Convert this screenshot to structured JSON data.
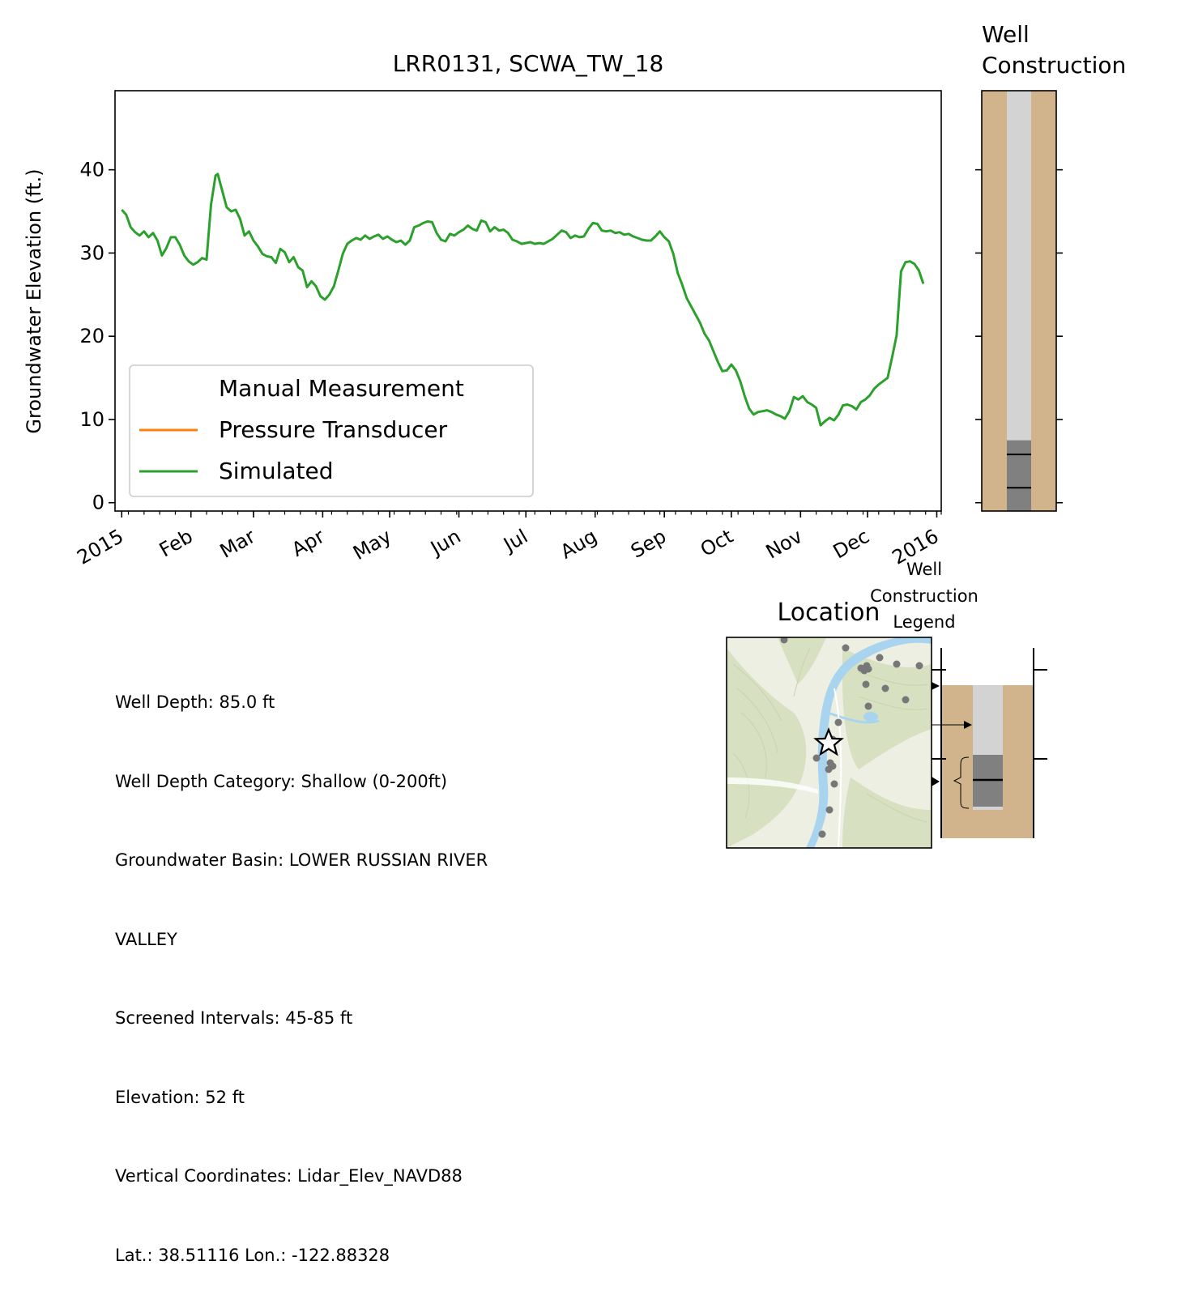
{
  "chart_data": [
    {
      "type": "line",
      "title": "LRR0131, SCWA_TW_18",
      "xlabel": "",
      "ylabel": "Groundwater Elevation (ft.)",
      "ylim": [
        -1,
        49.5
      ],
      "yticks": [
        0,
        10,
        20,
        30,
        40
      ],
      "xlim": [
        "2014-12-29",
        "2016-01-03"
      ],
      "xticks": [
        {
          "date": "2015-01-01",
          "label": "2015"
        },
        {
          "date": "2015-02-01",
          "label": "Feb"
        },
        {
          "date": "2015-03-01",
          "label": "Mar"
        },
        {
          "date": "2015-04-01",
          "label": "Apr"
        },
        {
          "date": "2015-05-01",
          "label": "May"
        },
        {
          "date": "2015-06-01",
          "label": "Jun"
        },
        {
          "date": "2015-07-01",
          "label": "Jul"
        },
        {
          "date": "2015-08-01",
          "label": "Aug"
        },
        {
          "date": "2015-09-01",
          "label": "Sep"
        },
        {
          "date": "2015-10-01",
          "label": "Oct"
        },
        {
          "date": "2015-11-01",
          "label": "Nov"
        },
        {
          "date": "2015-12-01",
          "label": "Dec"
        },
        {
          "date": "2016-01-01",
          "label": "2016"
        }
      ],
      "legend": {
        "placement": "lower-left",
        "entries": [
          {
            "name": "Manual Measurement",
            "color": "",
            "marker": "none"
          },
          {
            "name": "Pressure Transducer",
            "color": "#ff7f0e"
          },
          {
            "name": "Simulated",
            "color": "#2ca02c"
          }
        ]
      },
      "series": [
        {
          "name": "Manual Measurement",
          "points": []
        },
        {
          "name": "Pressure Transducer",
          "points": []
        },
        {
          "name": "Simulated",
          "color": "#2ca02c",
          "points": [
            [
              "2015-01-01",
              35.2
            ],
            [
              "2015-01-03",
              34.6
            ],
            [
              "2015-01-05",
              33.1
            ],
            [
              "2015-01-07",
              32.5
            ],
            [
              "2015-01-09",
              32.1
            ],
            [
              "2015-01-11",
              32.6
            ],
            [
              "2015-01-13",
              31.9
            ],
            [
              "2015-01-15",
              32.4
            ],
            [
              "2015-01-17",
              31.5
            ],
            [
              "2015-01-19",
              29.7
            ],
            [
              "2015-01-21",
              30.6
            ],
            [
              "2015-01-23",
              31.9
            ],
            [
              "2015-01-25",
              31.9
            ],
            [
              "2015-01-27",
              31.0
            ],
            [
              "2015-01-29",
              29.7
            ],
            [
              "2015-01-31",
              29.0
            ],
            [
              "2015-02-02",
              28.6
            ],
            [
              "2015-02-04",
              28.9
            ],
            [
              "2015-02-06",
              29.4
            ],
            [
              "2015-02-08",
              29.2
            ],
            [
              "2015-02-10",
              35.8
            ],
            [
              "2015-02-12",
              39.3
            ],
            [
              "2015-02-13",
              39.5
            ],
            [
              "2015-02-15",
              37.5
            ],
            [
              "2015-02-17",
              35.5
            ],
            [
              "2015-02-19",
              35.0
            ],
            [
              "2015-02-21",
              35.2
            ],
            [
              "2015-02-23",
              34.1
            ],
            [
              "2015-02-25",
              32.1
            ],
            [
              "2015-02-27",
              32.6
            ],
            [
              "2015-03-01",
              31.5
            ],
            [
              "2015-03-03",
              30.8
            ],
            [
              "2015-03-05",
              29.9
            ],
            [
              "2015-03-07",
              29.6
            ],
            [
              "2015-03-09",
              29.5
            ],
            [
              "2015-03-11",
              28.8
            ],
            [
              "2015-03-13",
              30.5
            ],
            [
              "2015-03-15",
              30.1
            ],
            [
              "2015-03-17",
              28.9
            ],
            [
              "2015-03-19",
              29.5
            ],
            [
              "2015-03-21",
              28.3
            ],
            [
              "2015-03-23",
              27.9
            ],
            [
              "2015-03-25",
              25.9
            ],
            [
              "2015-03-27",
              26.6
            ],
            [
              "2015-03-29",
              26.0
            ],
            [
              "2015-03-31",
              24.8
            ],
            [
              "2015-04-02",
              24.4
            ],
            [
              "2015-04-04",
              25.0
            ],
            [
              "2015-04-06",
              26.0
            ],
            [
              "2015-04-08",
              27.9
            ],
            [
              "2015-04-10",
              29.9
            ],
            [
              "2015-04-12",
              31.1
            ],
            [
              "2015-04-14",
              31.5
            ],
            [
              "2015-04-16",
              31.8
            ],
            [
              "2015-04-18",
              31.6
            ],
            [
              "2015-04-20",
              32.1
            ],
            [
              "2015-04-22",
              31.7
            ],
            [
              "2015-04-24",
              32.0
            ],
            [
              "2015-04-26",
              32.2
            ],
            [
              "2015-04-28",
              31.7
            ],
            [
              "2015-04-30",
              32.0
            ],
            [
              "2015-05-02",
              31.6
            ],
            [
              "2015-05-04",
              31.3
            ],
            [
              "2015-05-06",
              31.5
            ],
            [
              "2015-05-08",
              31.0
            ],
            [
              "2015-05-10",
              31.5
            ],
            [
              "2015-05-12",
              33.1
            ],
            [
              "2015-05-14",
              33.3
            ],
            [
              "2015-05-16",
              33.6
            ],
            [
              "2015-05-18",
              33.8
            ],
            [
              "2015-05-20",
              33.7
            ],
            [
              "2015-05-22",
              32.4
            ],
            [
              "2015-05-24",
              31.6
            ],
            [
              "2015-05-26",
              31.4
            ],
            [
              "2015-05-28",
              32.3
            ],
            [
              "2015-05-30",
              32.1
            ],
            [
              "2015-06-01",
              32.5
            ],
            [
              "2015-06-03",
              32.8
            ],
            [
              "2015-06-05",
              33.3
            ],
            [
              "2015-06-07",
              32.9
            ],
            [
              "2015-06-09",
              32.7
            ],
            [
              "2015-06-11",
              33.9
            ],
            [
              "2015-06-13",
              33.7
            ],
            [
              "2015-06-15",
              32.6
            ],
            [
              "2015-06-17",
              33.1
            ],
            [
              "2015-06-19",
              32.7
            ],
            [
              "2015-06-21",
              32.8
            ],
            [
              "2015-06-23",
              32.4
            ],
            [
              "2015-06-25",
              31.6
            ],
            [
              "2015-06-27",
              31.4
            ],
            [
              "2015-06-29",
              31.1
            ],
            [
              "2015-07-01",
              31.2
            ],
            [
              "2015-07-03",
              31.3
            ],
            [
              "2015-07-05",
              31.1
            ],
            [
              "2015-07-07",
              31.2
            ],
            [
              "2015-07-09",
              31.1
            ],
            [
              "2015-07-11",
              31.4
            ],
            [
              "2015-07-13",
              31.7
            ],
            [
              "2015-07-15",
              32.2
            ],
            [
              "2015-07-17",
              32.7
            ],
            [
              "2015-07-19",
              32.5
            ],
            [
              "2015-07-21",
              31.8
            ],
            [
              "2015-07-23",
              32.1
            ],
            [
              "2015-07-25",
              31.9
            ],
            [
              "2015-07-27",
              32.0
            ],
            [
              "2015-07-29",
              32.9
            ],
            [
              "2015-07-31",
              33.6
            ],
            [
              "2015-08-02",
              33.5
            ],
            [
              "2015-08-04",
              32.7
            ],
            [
              "2015-08-06",
              32.6
            ],
            [
              "2015-08-08",
              32.7
            ],
            [
              "2015-08-10",
              32.4
            ],
            [
              "2015-08-12",
              32.5
            ],
            [
              "2015-08-14",
              32.2
            ],
            [
              "2015-08-16",
              32.3
            ],
            [
              "2015-08-18",
              32.0
            ],
            [
              "2015-08-20",
              31.8
            ],
            [
              "2015-08-22",
              31.6
            ],
            [
              "2015-08-24",
              31.5
            ],
            [
              "2015-08-26",
              31.5
            ],
            [
              "2015-08-28",
              32.0
            ],
            [
              "2015-08-30",
              32.6
            ],
            [
              "2015-09-01",
              31.9
            ],
            [
              "2015-09-03",
              31.4
            ],
            [
              "2015-09-05",
              29.9
            ],
            [
              "2015-09-07",
              27.6
            ],
            [
              "2015-09-09",
              26.2
            ],
            [
              "2015-09-11",
              24.6
            ],
            [
              "2015-09-13",
              23.6
            ],
            [
              "2015-09-15",
              22.6
            ],
            [
              "2015-09-17",
              21.6
            ],
            [
              "2015-09-19",
              20.3
            ],
            [
              "2015-09-21",
              19.5
            ],
            [
              "2015-09-23",
              18.2
            ],
            [
              "2015-09-25",
              16.9
            ],
            [
              "2015-09-27",
              15.8
            ],
            [
              "2015-09-29",
              15.9
            ],
            [
              "2015-10-01",
              16.6
            ],
            [
              "2015-10-03",
              15.9
            ],
            [
              "2015-10-05",
              14.6
            ],
            [
              "2015-10-07",
              12.8
            ],
            [
              "2015-10-09",
              11.3
            ],
            [
              "2015-10-11",
              10.6
            ],
            [
              "2015-10-13",
              10.9
            ],
            [
              "2015-10-15",
              11.0
            ],
            [
              "2015-10-17",
              11.1
            ],
            [
              "2015-10-19",
              10.9
            ],
            [
              "2015-10-21",
              10.6
            ],
            [
              "2015-10-23",
              10.4
            ],
            [
              "2015-10-25",
              10.1
            ],
            [
              "2015-10-27",
              11.0
            ],
            [
              "2015-10-29",
              12.7
            ],
            [
              "2015-10-31",
              12.4
            ],
            [
              "2015-11-02",
              12.8
            ],
            [
              "2015-11-04",
              12.1
            ],
            [
              "2015-11-06",
              11.8
            ],
            [
              "2015-11-08",
              11.4
            ],
            [
              "2015-11-10",
              9.3
            ],
            [
              "2015-11-12",
              9.8
            ],
            [
              "2015-11-14",
              10.2
            ],
            [
              "2015-11-16",
              9.9
            ],
            [
              "2015-11-18",
              10.6
            ],
            [
              "2015-11-20",
              11.7
            ],
            [
              "2015-11-22",
              11.8
            ],
            [
              "2015-11-24",
              11.6
            ],
            [
              "2015-11-26",
              11.2
            ],
            [
              "2015-11-28",
              12.1
            ],
            [
              "2015-11-30",
              12.4
            ],
            [
              "2015-12-02",
              12.9
            ],
            [
              "2015-12-04",
              13.7
            ],
            [
              "2015-12-06",
              14.2
            ],
            [
              "2015-12-08",
              14.6
            ],
            [
              "2015-12-10",
              15.0
            ],
            [
              "2015-12-12",
              17.5
            ],
            [
              "2015-12-14",
              20.1
            ],
            [
              "2015-12-16",
              27.8
            ],
            [
              "2015-12-18",
              28.9
            ],
            [
              "2015-12-20",
              29.0
            ],
            [
              "2015-12-22",
              28.7
            ],
            [
              "2015-12-24",
              27.9
            ],
            [
              "2015-12-26",
              26.3
            ]
          ]
        }
      ]
    },
    {
      "type": "diagram",
      "title": "Well\nConstruction",
      "description_items": [
        "casing",
        "screened interval",
        "sand/soil"
      ],
      "colors": {
        "soil": "#d2b48c",
        "casing": "#d3d3d3",
        "screen": "#808080",
        "line": "#000000"
      },
      "screen_top_ft": 7.5,
      "screen_marks_ft": [
        5.8,
        1.8
      ],
      "shared_ylim": [
        -1,
        49.5
      ]
    }
  ],
  "info": {
    "lines": [
      "Well Depth: 85.0 ft",
      "Well Depth Category: Shallow (0-200ft)",
      "Groundwater Basin: LOWER RUSSIAN RIVER",
      "VALLEY",
      "Screened Intervals: 45-85 ft",
      "Elevation: 52 ft",
      "Vertical Coordinates: Lidar_Elev_NAVD88",
      "Lat.: 38.51116 Lon.: -122.88328"
    ]
  },
  "location": {
    "title": "Location",
    "marker": "star",
    "map_colors": {
      "land": "#ecefe2",
      "hill": "#d7e1c1",
      "river": "#a9d4f0",
      "point": "#777777"
    }
  },
  "legend_inset": {
    "title": "Well\nConstruction\nLegend"
  }
}
